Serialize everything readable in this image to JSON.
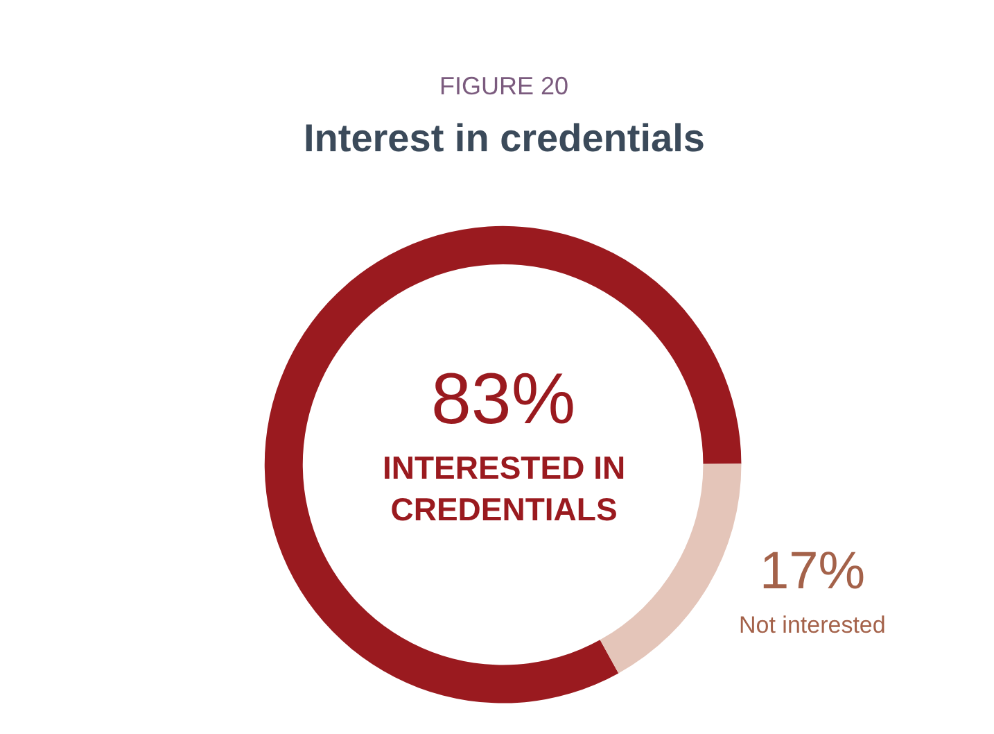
{
  "chart_data": {
    "type": "donut",
    "title": "Interest in credentials",
    "annotations": [
      "FIGURE 20"
    ],
    "categories": [
      "INTERESTED IN CREDENTIALS",
      "Not interested"
    ],
    "values": [
      83,
      17
    ],
    "value_labels": [
      "83%",
      "17%"
    ],
    "colors": [
      "#9a1a1f",
      "#e4c5b9"
    ],
    "legend": false
  }
}
